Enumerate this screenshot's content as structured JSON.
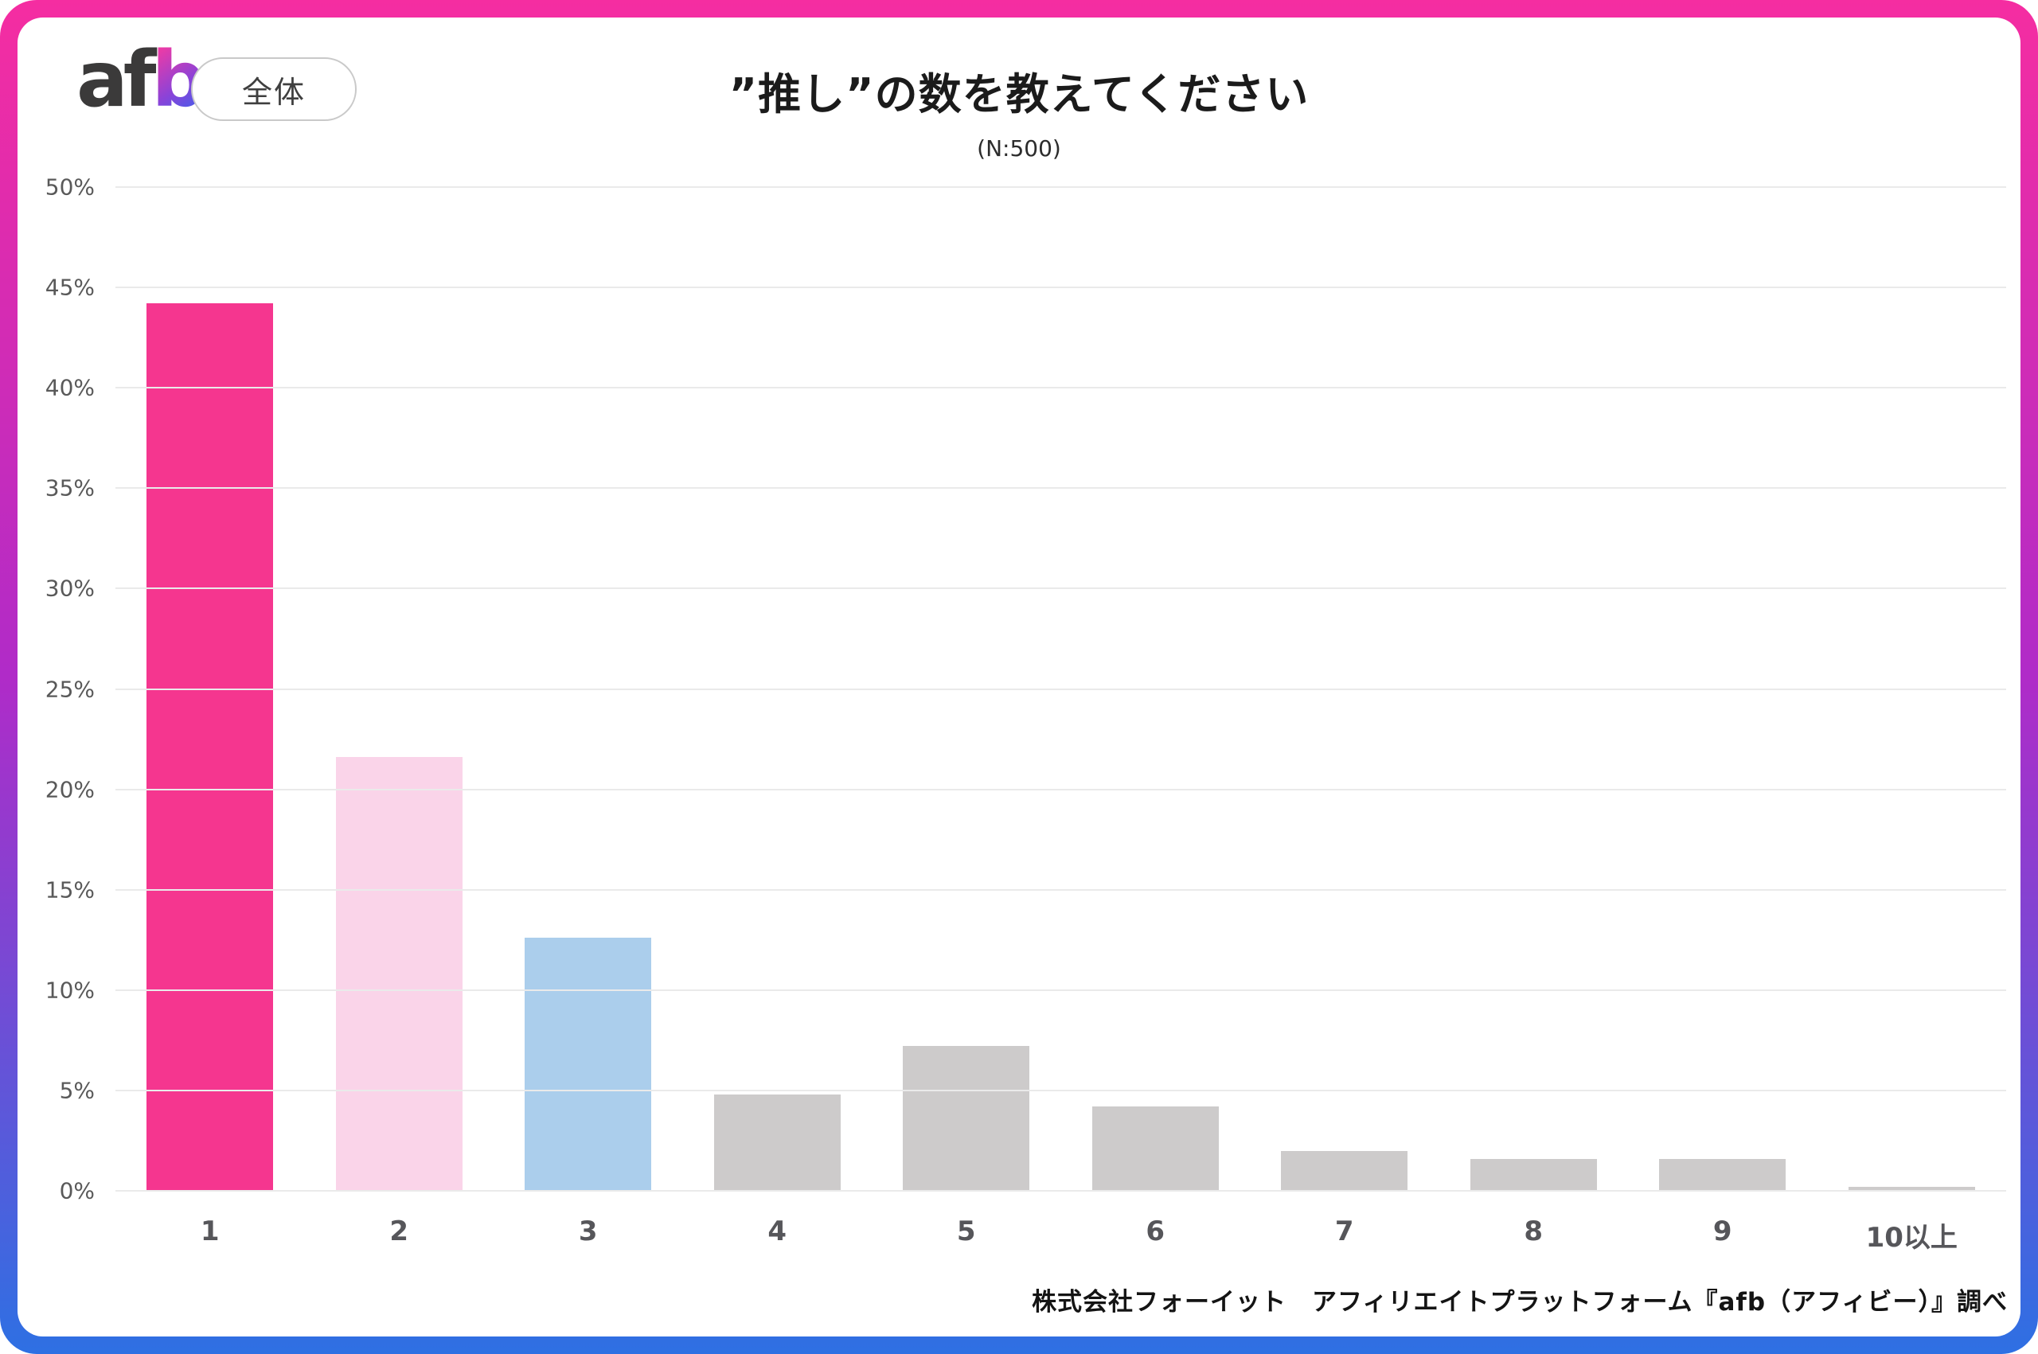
{
  "header": {
    "logo_part_dark": "af",
    "logo_part_gradient": "b",
    "scope_badge": "全体",
    "title": "”推し”の数を教えてください",
    "subtitle": "(N:500)"
  },
  "footer": {
    "source": "株式会社フォーイット　アフィリエイトプラットフォーム『afb（アフィビー）』調べ"
  },
  "colors": {
    "accent_pink": "#F5368F",
    "light_pink": "#FAD4E9",
    "light_blue": "#ABCEEC",
    "neutral_gray": "#CDCBCB",
    "grid": "#EAEAEA",
    "axis_text": "#595959",
    "border_gradient_top": "#F52DA1",
    "border_gradient_middle": "#B02BC8",
    "border_gradient_bottom": "#2E70E3"
  },
  "chart_data": {
    "type": "bar",
    "title": "”推し”の数を教えてください",
    "subtitle": "(N:500)",
    "categories": [
      "1",
      "2",
      "3",
      "4",
      "5",
      "6",
      "7",
      "8",
      "9",
      "10以上"
    ],
    "values": [
      44.2,
      21.6,
      12.6,
      4.8,
      7.2,
      4.2,
      2.0,
      1.6,
      1.6,
      0.2
    ],
    "unit": "%",
    "xlabel": "",
    "ylabel": "",
    "ylim": [
      0,
      50
    ],
    "ytick_step": 5,
    "ytick_suffix": "%",
    "grid": true,
    "legend": false,
    "bar_colors": [
      "#F5368F",
      "#FAD4E9",
      "#ABCEEC",
      "#CDCBCB",
      "#CDCBCB",
      "#CDCBCB",
      "#CDCBCB",
      "#CDCBCB",
      "#CDCBCB",
      "#CDCBCB"
    ]
  }
}
